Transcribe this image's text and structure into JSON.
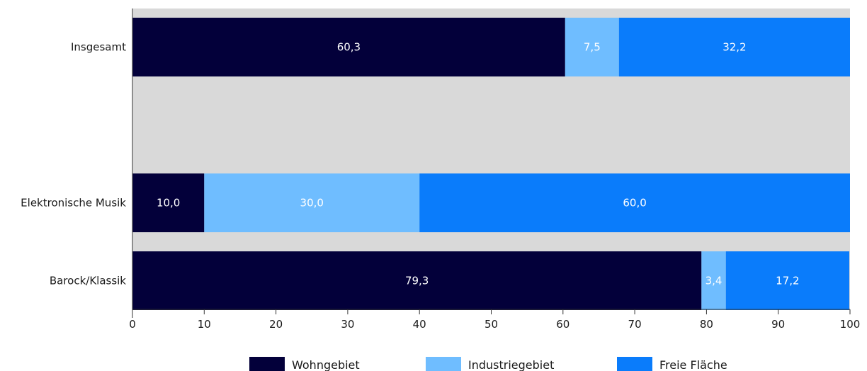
{
  "chart_data": {
    "type": "bar",
    "orientation": "horizontal",
    "stacked": true,
    "categories": [
      "Insgesamt",
      "",
      "Elektronische Musik",
      "Barock/Klassik"
    ],
    "series": [
      {
        "name": "Wohngebiet",
        "color": "#03003a",
        "values": [
          60.3,
          null,
          10.0,
          79.3
        ],
        "labels": [
          "60,3",
          "",
          "10,0",
          "79,3"
        ]
      },
      {
        "name": "Industriegebiet",
        "color": "#6fbdff",
        "values": [
          7.5,
          null,
          30.0,
          3.4
        ],
        "labels": [
          "7,5",
          "",
          "30,0",
          "3,4"
        ]
      },
      {
        "name": "Freie Fläche",
        "color": "#0a7cfb",
        "values": [
          32.2,
          null,
          60.0,
          17.2
        ],
        "labels": [
          "32,2",
          "",
          "60,0",
          "17,2"
        ]
      }
    ],
    "xlim": [
      0,
      100
    ],
    "xticks": [
      "0",
      "10",
      "20",
      "30",
      "40",
      "50",
      "60",
      "70",
      "80",
      "90",
      "100"
    ],
    "background_color": "#d9d9d9",
    "legend_position": "bottom",
    "title": "",
    "xlabel": "",
    "ylabel": ""
  }
}
